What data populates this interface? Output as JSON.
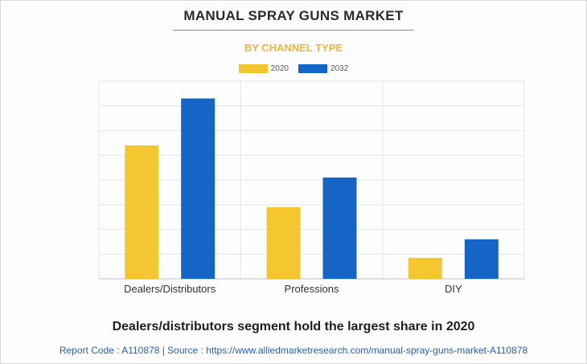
{
  "chart_data": {
    "type": "bar",
    "title": "MANUAL SPRAY GUNS MARKET",
    "subtitle": "BY CHANNEL TYPE",
    "categories": [
      "Dealers/Distributors",
      "Professions",
      "DIY"
    ],
    "series": [
      {
        "name": "2020",
        "color": "#f4c731",
        "values": [
          54,
          29,
          8.5
        ]
      },
      {
        "name": "2032",
        "color": "#1565c6",
        "values": [
          73,
          41,
          16
        ]
      }
    ],
    "ylim": [
      0,
      80
    ],
    "grid": true,
    "legend": "top-center",
    "xlabel": "",
    "ylabel": ""
  },
  "caption": "Dealers/distributors segment hold the largest share in 2020",
  "source_line": "Report Code : A110878  |  Source : https://www.alliedmarketresearch.com/manual-spray-guns-market-A110878"
}
